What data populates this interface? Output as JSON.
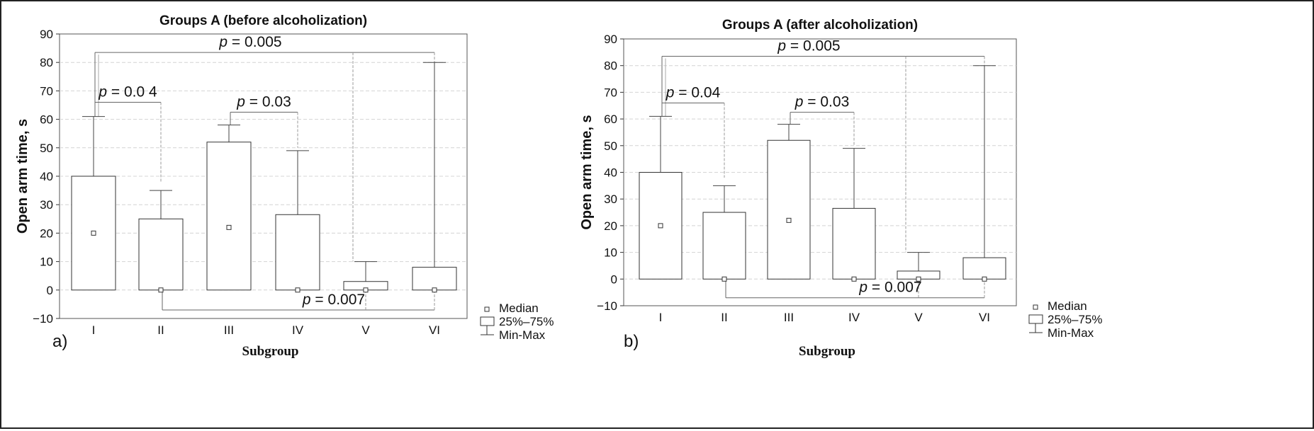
{
  "chart_data": [
    {
      "type": "box",
      "panel_label": "a)",
      "title": "Groups A (before alcoholization)",
      "xlabel": "Subgroup",
      "ylabel": "Open arm time, s",
      "ylim": [
        -10,
        90
      ],
      "yticks": [
        "90",
        "80",
        "70",
        "60",
        "50",
        "40",
        "30",
        "20",
        "10",
        "0",
        "−10"
      ],
      "categories": [
        "I",
        "II",
        "III",
        "IV",
        "V",
        "VI"
      ],
      "boxes": [
        {
          "category": "I",
          "min": 0,
          "q1": 0,
          "median": 20,
          "q3": 40,
          "max": 61
        },
        {
          "category": "II",
          "min": 0,
          "q1": 0,
          "median": 0,
          "q3": 25,
          "max": 35
        },
        {
          "category": "III",
          "min": 0,
          "q1": 0,
          "median": 22,
          "q3": 52,
          "max": 58
        },
        {
          "category": "IV",
          "min": 0,
          "q1": 0,
          "median": 0,
          "q3": 26.5,
          "max": 49
        },
        {
          "category": "V",
          "min": 0,
          "q1": 0,
          "median": 0,
          "q3": 3,
          "max": 10
        },
        {
          "category": "VI",
          "min": 0,
          "q1": 0,
          "median": 0,
          "q3": 8,
          "max": 80
        }
      ],
      "annotations": [
        {
          "p": "= 0.005",
          "between": [
            "I",
            "VI"
          ],
          "level": 83.5,
          "leg_ends": [
            61,
            10
          ],
          "also_to": "V"
        },
        {
          "p": "= 0.0 4",
          "between": [
            "I",
            "II"
          ],
          "level": 66,
          "leg_ends": [
            61,
            38
          ]
        },
        {
          "p": "= 0.03",
          "between": [
            "III",
            "IV"
          ],
          "level": 62.5,
          "leg_ends": [
            58,
            50
          ]
        },
        {
          "p": "= 0.007",
          "between": [
            "II",
            "VI"
          ],
          "level": -7,
          "leg_ends": [
            0,
            0
          ],
          "also_to": "V"
        }
      ],
      "legend": {
        "median": "Median",
        "box": "25%–75%",
        "whisker": "Min-Max"
      }
    },
    {
      "type": "box",
      "panel_label": "b)",
      "title": "Groups A (after alcoholization)",
      "xlabel": "Subgroup",
      "ylabel": "Open arm time, s",
      "ylim": [
        -10,
        90
      ],
      "yticks": [
        "90",
        "80",
        "70",
        "60",
        "50",
        "40",
        "30",
        "20",
        "10",
        "0",
        "−10"
      ],
      "categories": [
        "I",
        "II",
        "III",
        "IV",
        "V",
        "VI"
      ],
      "boxes": [
        {
          "category": "I",
          "min": 0,
          "q1": 0,
          "median": 20,
          "q3": 40,
          "max": 61
        },
        {
          "category": "II",
          "min": 0,
          "q1": 0,
          "median": 0,
          "q3": 25,
          "max": 35
        },
        {
          "category": "III",
          "min": 0,
          "q1": 0,
          "median": 22,
          "q3": 52,
          "max": 58
        },
        {
          "category": "IV",
          "min": 0,
          "q1": 0,
          "median": 0,
          "q3": 26.5,
          "max": 49
        },
        {
          "category": "V",
          "min": 0,
          "q1": 0,
          "median": 0,
          "q3": 3,
          "max": 10
        },
        {
          "category": "VI",
          "min": 0,
          "q1": 0,
          "median": 0,
          "q3": 8,
          "max": 80
        }
      ],
      "annotations": [
        {
          "p": "= 0.005",
          "between": [
            "I",
            "VI"
          ],
          "level": 83.5,
          "leg_ends": [
            61,
            10
          ],
          "also_to": "V"
        },
        {
          "p": "= 0.04",
          "between": [
            "I",
            "II"
          ],
          "level": 66,
          "leg_ends": [
            61,
            38
          ]
        },
        {
          "p": "= 0.03",
          "between": [
            "III",
            "IV"
          ],
          "level": 62.5,
          "leg_ends": [
            58,
            50
          ]
        },
        {
          "p": "= 0.007",
          "between": [
            "II",
            "VI"
          ],
          "level": -7,
          "leg_ends": [
            0,
            0
          ],
          "also_to": "V"
        }
      ],
      "legend": {
        "median": "Median",
        "box": "25%–75%",
        "whisker": "Min-Max"
      }
    }
  ]
}
